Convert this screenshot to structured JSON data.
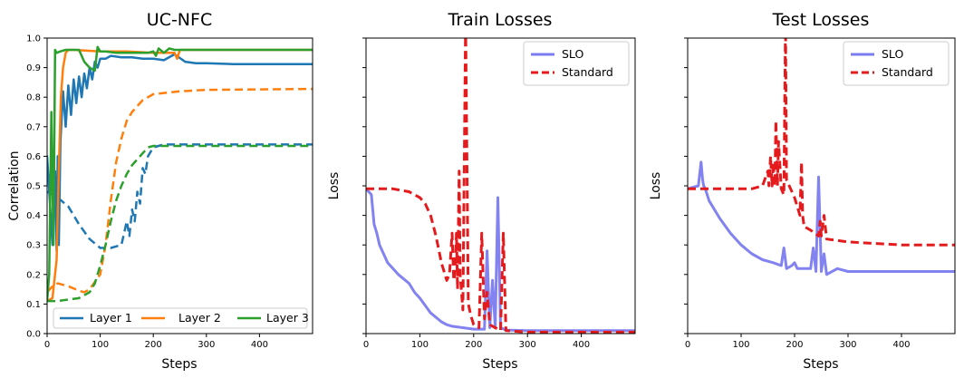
{
  "chart_data": [
    {
      "type": "line",
      "title": "UC-NFC",
      "xlabel": "Steps",
      "ylabel": "Correlation",
      "xlim": [
        0,
        500
      ],
      "ylim": [
        0,
        1
      ],
      "xticks": [
        0,
        100,
        200,
        300,
        400
      ],
      "yticks": [
        0.0,
        0.1,
        0.2,
        0.3,
        0.4,
        0.5,
        0.6,
        0.7,
        0.8,
        0.9,
        1.0
      ],
      "ytick_labels": [
        "0.0",
        "0.1",
        "0.2",
        "0.3",
        "0.4",
        "0.5",
        "0.6",
        "0.7",
        "0.8",
        "0.9",
        "1.0"
      ],
      "legend_position": "bottom",
      "legend": [
        "Layer 1",
        "Layer 2",
        "Layer 3"
      ],
      "series": [
        {
          "name": "Layer 1 (solid)",
          "color": "#1f77b4",
          "dash": "solid",
          "x": [
            0,
            10,
            12,
            15,
            18,
            20,
            22,
            25,
            30,
            35,
            40,
            45,
            50,
            55,
            60,
            65,
            70,
            75,
            80,
            85,
            90,
            95,
            100,
            110,
            120,
            140,
            160,
            180,
            200,
            220,
            240,
            260,
            280,
            300,
            350,
            400,
            500
          ],
          "y": [
            0.6,
            0.3,
            0.5,
            0.55,
            0.28,
            0.6,
            0.3,
            0.65,
            0.82,
            0.7,
            0.84,
            0.74,
            0.86,
            0.78,
            0.87,
            0.8,
            0.88,
            0.83,
            0.9,
            0.86,
            0.92,
            0.9,
            0.93,
            0.93,
            0.94,
            0.935,
            0.935,
            0.93,
            0.93,
            0.925,
            0.945,
            0.92,
            0.915,
            0.915,
            0.912,
            0.912,
            0.912
          ]
        },
        {
          "name": "Layer 1 (dashed)",
          "color": "#1f77b4",
          "dash": "dashed",
          "x": [
            0,
            10,
            20,
            40,
            60,
            80,
            100,
            120,
            140,
            145,
            150,
            155,
            160,
            165,
            170,
            175,
            180,
            185,
            190,
            200,
            220,
            300,
            500
          ],
          "y": [
            0.48,
            0.47,
            0.46,
            0.43,
            0.37,
            0.32,
            0.29,
            0.29,
            0.3,
            0.34,
            0.38,
            0.33,
            0.42,
            0.38,
            0.48,
            0.44,
            0.56,
            0.54,
            0.6,
            0.63,
            0.64,
            0.64,
            0.64
          ]
        },
        {
          "name": "Layer 2 (solid)",
          "color": "#ff7f0e",
          "dash": "solid",
          "x": [
            0,
            10,
            18,
            22,
            26,
            30,
            35,
            40,
            50,
            100,
            150,
            200,
            220,
            240,
            245,
            250,
            300,
            500
          ],
          "y": [
            0.11,
            0.12,
            0.25,
            0.55,
            0.8,
            0.9,
            0.95,
            0.96,
            0.96,
            0.955,
            0.955,
            0.95,
            0.95,
            0.95,
            0.93,
            0.96,
            0.96,
            0.96
          ]
        },
        {
          "name": "Layer 2 (dashed)",
          "color": "#ff7f0e",
          "dash": "dashed",
          "x": [
            0,
            10,
            20,
            40,
            60,
            70,
            80,
            100,
            110,
            120,
            130,
            140,
            150,
            160,
            170,
            180,
            200,
            250,
            300,
            500
          ],
          "y": [
            0.14,
            0.16,
            0.17,
            0.16,
            0.145,
            0.14,
            0.15,
            0.2,
            0.3,
            0.45,
            0.58,
            0.66,
            0.72,
            0.75,
            0.77,
            0.79,
            0.81,
            0.82,
            0.825,
            0.828
          ]
        },
        {
          "name": "Layer 3 (solid)",
          "color": "#2ca02c",
          "dash": "solid",
          "x": [
            0,
            4,
            8,
            12,
            15,
            18,
            25,
            35,
            50,
            60,
            70,
            80,
            90,
            95,
            100,
            110,
            130,
            150,
            170,
            190,
            200,
            205,
            210,
            220,
            230,
            240,
            260,
            300,
            500
          ],
          "y": [
            0.11,
            0.2,
            0.75,
            0.3,
            0.96,
            0.95,
            0.955,
            0.96,
            0.96,
            0.96,
            0.92,
            0.9,
            0.89,
            0.97,
            0.955,
            0.955,
            0.95,
            0.95,
            0.95,
            0.95,
            0.955,
            0.94,
            0.965,
            0.95,
            0.965,
            0.96,
            0.96,
            0.96,
            0.96
          ]
        },
        {
          "name": "Layer 3 (dashed)",
          "color": "#2ca02c",
          "dash": "dashed",
          "x": [
            0,
            20,
            40,
            60,
            80,
            90,
            100,
            110,
            120,
            130,
            140,
            150,
            160,
            170,
            180,
            190,
            200,
            220,
            300,
            500
          ],
          "y": [
            0.11,
            0.11,
            0.115,
            0.12,
            0.14,
            0.17,
            0.23,
            0.3,
            0.38,
            0.45,
            0.5,
            0.54,
            0.57,
            0.59,
            0.61,
            0.63,
            0.635,
            0.635,
            0.635,
            0.635
          ]
        }
      ]
    },
    {
      "type": "line",
      "title": "Train Losses",
      "xlabel": "Steps",
      "ylabel": "Loss",
      "xlim": [
        0,
        500
      ],
      "ylim": [
        0,
        1
      ],
      "xticks": [
        0,
        100,
        200,
        300,
        400
      ],
      "y_unlabeled": true,
      "legend_position": "top-right",
      "legend": [
        "SLO",
        "Standard"
      ],
      "series": [
        {
          "name": "SLO",
          "color": "#7b7bf0",
          "dash": "solid",
          "x": [
            0,
            10,
            15,
            20,
            25,
            40,
            60,
            80,
            90,
            95,
            100,
            120,
            140,
            150,
            160,
            180,
            200,
            220,
            225,
            230,
            235,
            240,
            245,
            250,
            260,
            300,
            400,
            500
          ],
          "y": [
            0.49,
            0.47,
            0.37,
            0.34,
            0.3,
            0.24,
            0.2,
            0.17,
            0.14,
            0.13,
            0.12,
            0.07,
            0.04,
            0.03,
            0.025,
            0.02,
            0.015,
            0.015,
            0.28,
            0.02,
            0.18,
            0.02,
            0.46,
            0.02,
            0.012,
            0.01,
            0.01,
            0.01
          ]
        },
        {
          "name": "Standard",
          "color": "#e41a1c",
          "dash": "dashed",
          "x": [
            0,
            50,
            80,
            100,
            110,
            120,
            130,
            140,
            150,
            155,
            160,
            163,
            165,
            168,
            170,
            173,
            175,
            180,
            185,
            190,
            195,
            200,
            210,
            215,
            220,
            225,
            230,
            240,
            250,
            255,
            260,
            300,
            500
          ],
          "y": [
            0.49,
            0.49,
            0.48,
            0.46,
            0.44,
            0.4,
            0.33,
            0.24,
            0.18,
            0.2,
            0.34,
            0.18,
            0.2,
            0.34,
            0.15,
            0.55,
            0.2,
            0.08,
            1.05,
            0.1,
            0.06,
            0.03,
            0.02,
            0.34,
            0.05,
            0.14,
            0.03,
            0.02,
            0.01,
            0.34,
            0.01,
            0.005,
            0.005
          ]
        }
      ]
    },
    {
      "type": "line",
      "title": "Test Losses",
      "xlabel": "Steps",
      "ylabel": "Loss",
      "xlim": [
        0,
        500
      ],
      "ylim": [
        0,
        1
      ],
      "xticks": [
        0,
        100,
        200,
        300,
        400
      ],
      "y_unlabeled": true,
      "legend_position": "top-right",
      "legend": [
        "SLO",
        "Standard"
      ],
      "series": [
        {
          "name": "SLO",
          "color": "#7b7bf0",
          "dash": "solid",
          "x": [
            0,
            20,
            25,
            28,
            30,
            33,
            40,
            60,
            80,
            100,
            120,
            140,
            160,
            175,
            180,
            185,
            195,
            200,
            205,
            230,
            235,
            240,
            245,
            250,
            255,
            260,
            280,
            300,
            350,
            400,
            500
          ],
          "y": [
            0.49,
            0.5,
            0.58,
            0.52,
            0.5,
            0.49,
            0.45,
            0.39,
            0.34,
            0.3,
            0.27,
            0.25,
            0.24,
            0.23,
            0.29,
            0.22,
            0.23,
            0.24,
            0.22,
            0.22,
            0.29,
            0.21,
            0.53,
            0.21,
            0.27,
            0.2,
            0.22,
            0.21,
            0.21,
            0.21,
            0.21
          ]
        },
        {
          "name": "Standard",
          "color": "#e41a1c",
          "dash": "dashed",
          "x": [
            0,
            40,
            80,
            120,
            140,
            150,
            152,
            155,
            158,
            160,
            163,
            165,
            168,
            170,
            175,
            180,
            183,
            185,
            190,
            200,
            210,
            213,
            215,
            218,
            220,
            230,
            245,
            248,
            250,
            255,
            260,
            300,
            400,
            500
          ],
          "y": [
            0.49,
            0.49,
            0.49,
            0.49,
            0.5,
            0.55,
            0.5,
            0.6,
            0.5,
            0.58,
            0.5,
            0.72,
            0.5,
            0.65,
            0.49,
            0.47,
            1.05,
            0.52,
            0.5,
            0.46,
            0.4,
            0.58,
            0.4,
            0.36,
            0.36,
            0.35,
            0.33,
            0.38,
            0.33,
            0.4,
            0.32,
            0.31,
            0.3,
            0.3
          ]
        }
      ]
    }
  ]
}
